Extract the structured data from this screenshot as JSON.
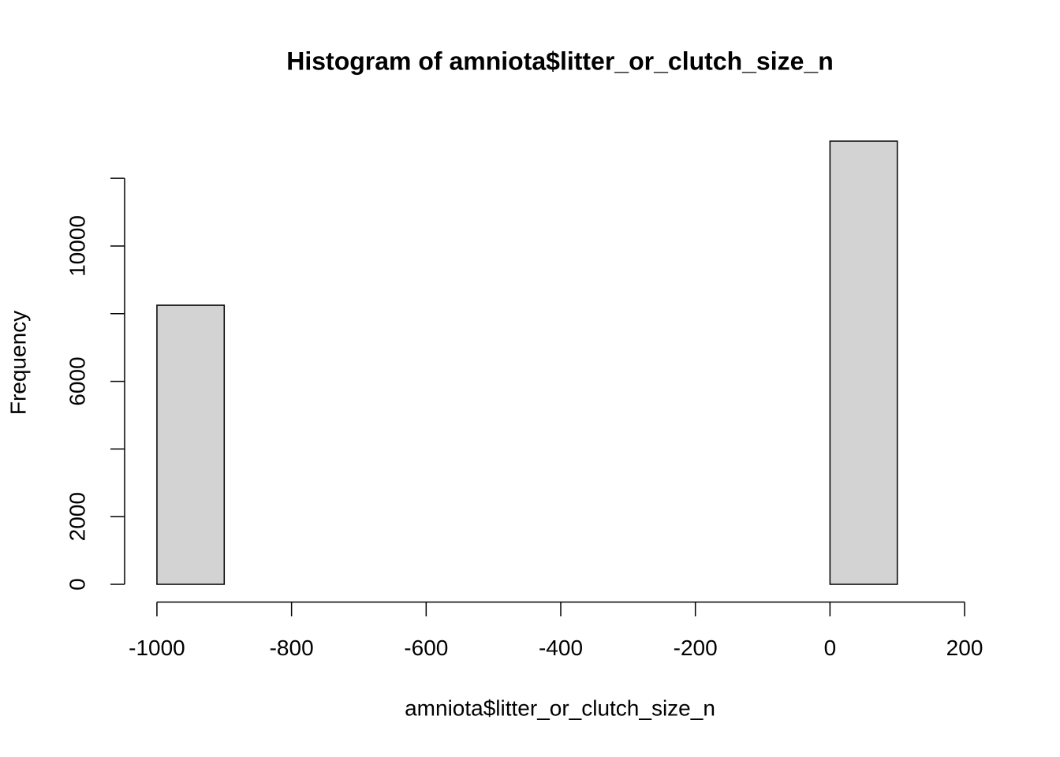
{
  "chart_data": {
    "type": "histogram",
    "title": "Histogram of amniota$litter_or_clutch_size_n",
    "x_label": "amniota$litter_or_clutch_size_n",
    "y_label": "Frequency",
    "bins": [
      -1000,
      -900,
      -800,
      -700,
      -600,
      -500,
      -400,
      -300,
      -200,
      -100,
      0,
      100,
      200
    ],
    "values": [
      8250,
      0,
      0,
      0,
      0,
      0,
      0,
      0,
      0,
      0,
      13100,
      0
    ],
    "color": "#d3d3d3",
    "xlim": [
      -1048,
      248
    ],
    "xticks": [
      -1000,
      -800,
      -600,
      -400,
      -200,
      0,
      200
    ],
    "ylim": [
      -524,
      13624
    ],
    "yticks": [
      0,
      2000,
      4000,
      6000,
      8000,
      10000,
      12000
    ],
    "ytick_labels": [
      0,
      2000,
      6000,
      10000
    ]
  }
}
